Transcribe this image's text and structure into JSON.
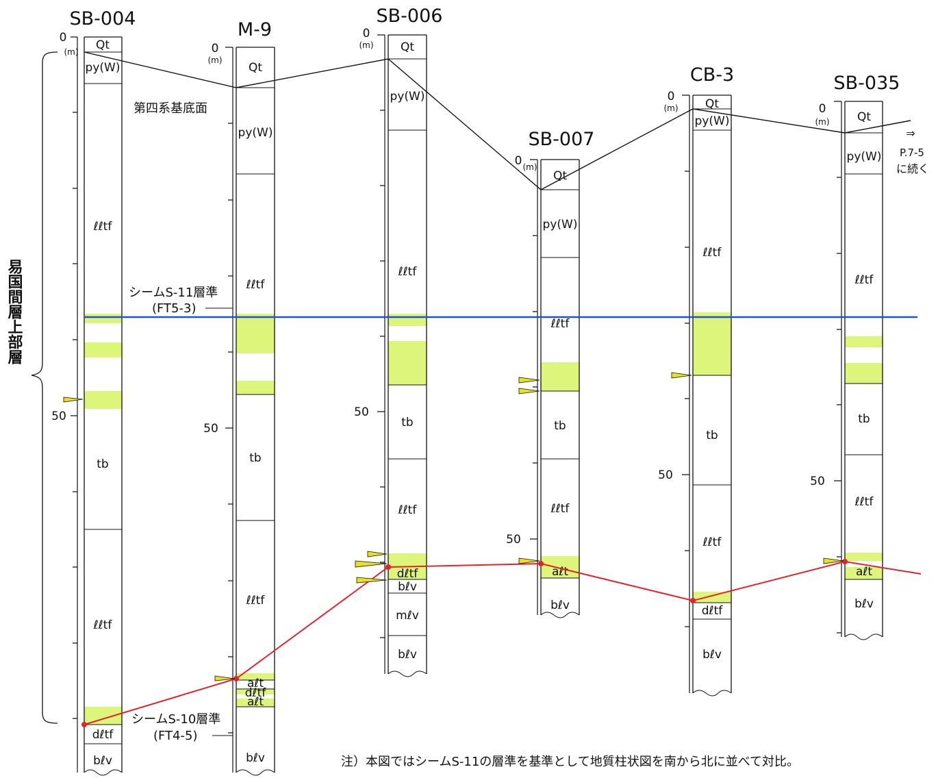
{
  "note": "注）本図ではシームS-11の層準を基準として地質柱状図を南から北に並べて対比。",
  "vertical_label": "易国間層上部層",
  "quaternary_label": "第四系基底面",
  "continuation": {
    "arrow": "⇒",
    "page": "P.7-5",
    "text": "に続く"
  },
  "s11": {
    "label": "シームS-11層準",
    "code": "(FT5-3)"
  },
  "s10": {
    "label": "シームS-10層準",
    "code": "(FT4-5)"
  },
  "scale": {
    "zero": "0",
    "unit": "(m)",
    "fifty": "50"
  },
  "colors": {
    "s11_line": "#1f4fe0",
    "s10_line": "#e8202a",
    "tuff_fill": "#dcf57a",
    "marker_fill": "#e8e020"
  },
  "boreholes": [
    {
      "name": "SB-004",
      "layers": [
        {
          "label": "Qt"
        },
        {
          "label": "py(W)"
        },
        {
          "label": "ℓℓtf"
        },
        {
          "label": "tb"
        },
        {
          "label": "ℓℓtf"
        },
        {
          "label": "dℓtf"
        },
        {
          "label": "bℓv"
        }
      ]
    },
    {
      "name": "M-9",
      "layers": [
        {
          "label": "Qt"
        },
        {
          "label": "py(W)"
        },
        {
          "label": "ℓℓtf"
        },
        {
          "label": "tb"
        },
        {
          "label": "ℓℓtf"
        },
        {
          "label": "aℓt"
        },
        {
          "label": "dℓtf"
        },
        {
          "label": "aℓt"
        },
        {
          "label": "bℓv"
        }
      ]
    },
    {
      "name": "SB-006",
      "layers": [
        {
          "label": "Qt"
        },
        {
          "label": "py(W)"
        },
        {
          "label": "ℓℓtf"
        },
        {
          "label": "tb"
        },
        {
          "label": "ℓℓtf"
        },
        {
          "label": "dℓtf"
        },
        {
          "label": "bℓv"
        },
        {
          "label": "mℓv"
        },
        {
          "label": "bℓv"
        }
      ]
    },
    {
      "name": "SB-007",
      "layers": [
        {
          "label": "Qt"
        },
        {
          "label": "py(W)"
        },
        {
          "label": "ℓℓtf"
        },
        {
          "label": "tb"
        },
        {
          "label": "ℓℓtf"
        },
        {
          "label": "aℓt"
        },
        {
          "label": "bℓv"
        }
      ]
    },
    {
      "name": "CB-3",
      "layers": [
        {
          "label": "Qt"
        },
        {
          "label": "py(W)"
        },
        {
          "label": "ℓℓtf"
        },
        {
          "label": "tb"
        },
        {
          "label": "ℓℓtf"
        },
        {
          "label": "dℓtf"
        },
        {
          "label": "bℓv"
        }
      ]
    },
    {
      "name": "SB-035",
      "layers": [
        {
          "label": "Qt"
        },
        {
          "label": "py(W)"
        },
        {
          "label": "ℓℓtf"
        },
        {
          "label": "tb"
        },
        {
          "label": "ℓℓtf"
        },
        {
          "label": "aℓt"
        },
        {
          "label": "bℓv"
        }
      ]
    }
  ]
}
